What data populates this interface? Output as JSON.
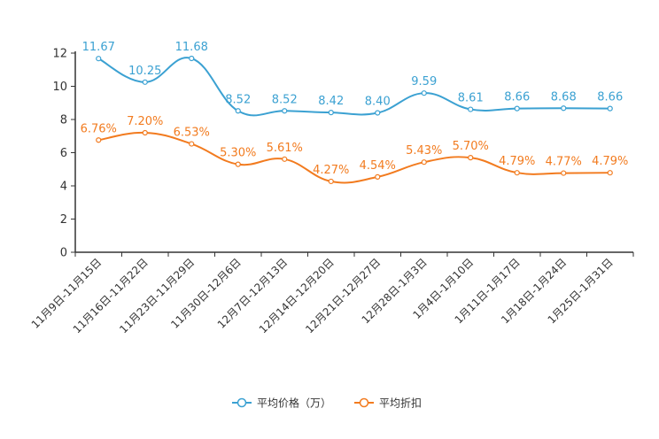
{
  "chart_data": {
    "type": "line",
    "title": "",
    "xlabel": "",
    "ylabel": "",
    "ylim": [
      0,
      12
    ],
    "yticks": [
      0,
      2,
      4,
      6,
      8,
      10,
      12
    ],
    "ytick_labels": [
      "0",
      "2",
      "4",
      "6",
      "8",
      "10",
      "12"
    ],
    "categories": [
      "11月9日-11月15日",
      "11月16日-11月22日",
      "11月23日-11月29日",
      "11月30日-12月6日",
      "12月7日-12月13日",
      "12月14日-12月20日",
      "12月21日-12月27日",
      "12月28日-1月3日",
      "1月4日-1月10日",
      "1月11日-1月17日",
      "1月18日-1月24日",
      "1月25日-1月31日"
    ],
    "series": [
      {
        "name": "平均价格（万）",
        "color": "#3ba1d2",
        "values": [
          11.67,
          10.25,
          11.68,
          8.52,
          8.52,
          8.42,
          8.4,
          9.59,
          8.61,
          8.66,
          8.68,
          8.66
        ],
        "labels": [
          "11.67",
          "10.25",
          "11.68",
          "8.52",
          "8.52",
          "8.42",
          "8.40",
          "9.59",
          "8.61",
          "8.66",
          "8.68",
          "8.66"
        ]
      },
      {
        "name": "平均折扣",
        "color": "#f27b1f",
        "values": [
          6.76,
          7.2,
          6.53,
          5.3,
          5.61,
          4.27,
          4.54,
          5.43,
          5.7,
          4.79,
          4.77,
          4.79
        ],
        "labels": [
          "6.76%",
          "7.20%",
          "6.53%",
          "5.30%",
          "5.61%",
          "4.27%",
          "4.54%",
          "5.43%",
          "5.70%",
          "4.79%",
          "4.77%",
          "4.79%"
        ]
      }
    ],
    "legend": [
      "平均价格（万）",
      "平均折扣"
    ],
    "legend_position": "bottom-center",
    "grid": false
  }
}
